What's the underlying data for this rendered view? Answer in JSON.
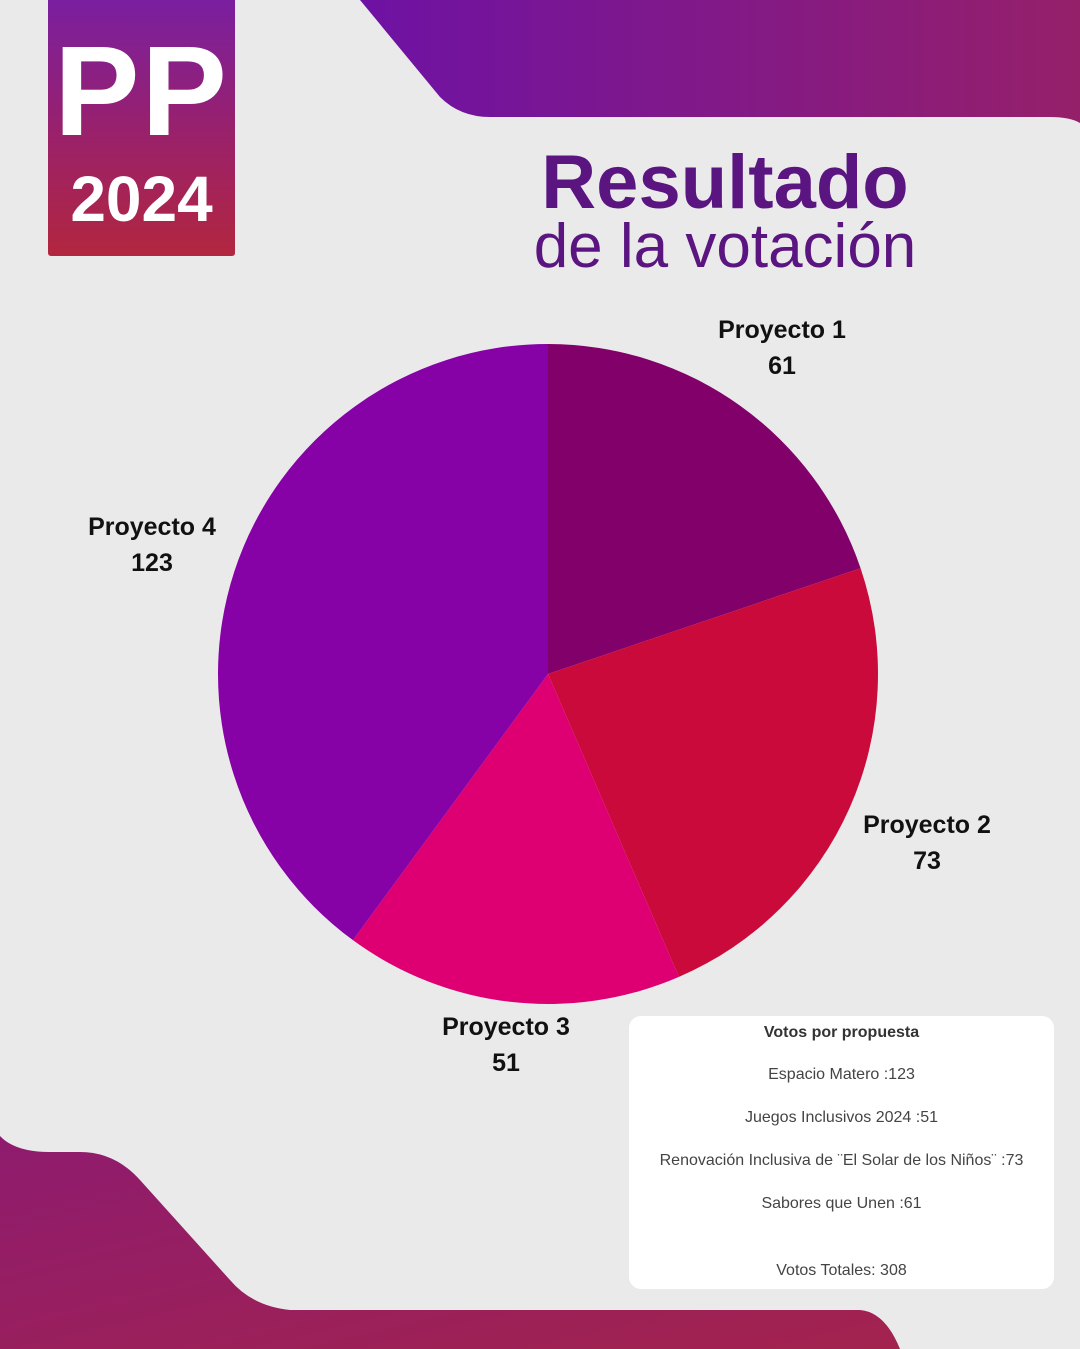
{
  "colors": {
    "background": "#ebeaeb",
    "band_purple": "#7a1aa0",
    "band_magenta": "#981f66",
    "title": "#5a1581"
  },
  "logo": {
    "main": "PP",
    "year": "2024"
  },
  "heading": {
    "title": "Resultado",
    "subtitle": "de la votación"
  },
  "chart_data": {
    "type": "pie",
    "title": "",
    "start_angle_deg": 0,
    "direction": "clockwise",
    "slices": [
      {
        "label": "Proyecto 1",
        "value": 61,
        "color": "#820069"
      },
      {
        "label": "Proyecto 2",
        "value": 73,
        "color": "#cb0a3c"
      },
      {
        "label": "Proyecto 3",
        "value": 51,
        "color": "#de0072"
      },
      {
        "label": "Proyecto 4",
        "value": 123,
        "color": "#8601a6"
      }
    ]
  },
  "summary": {
    "title": "Votos por propuesta",
    "items": [
      "Espacio Matero :123",
      "Juegos Inclusivos 2024 :51",
      "Renovación Inclusiva de ¨El Solar de los Niños¨ :73",
      "Sabores que Unen :61"
    ],
    "total": "Votos Totales: 308"
  }
}
